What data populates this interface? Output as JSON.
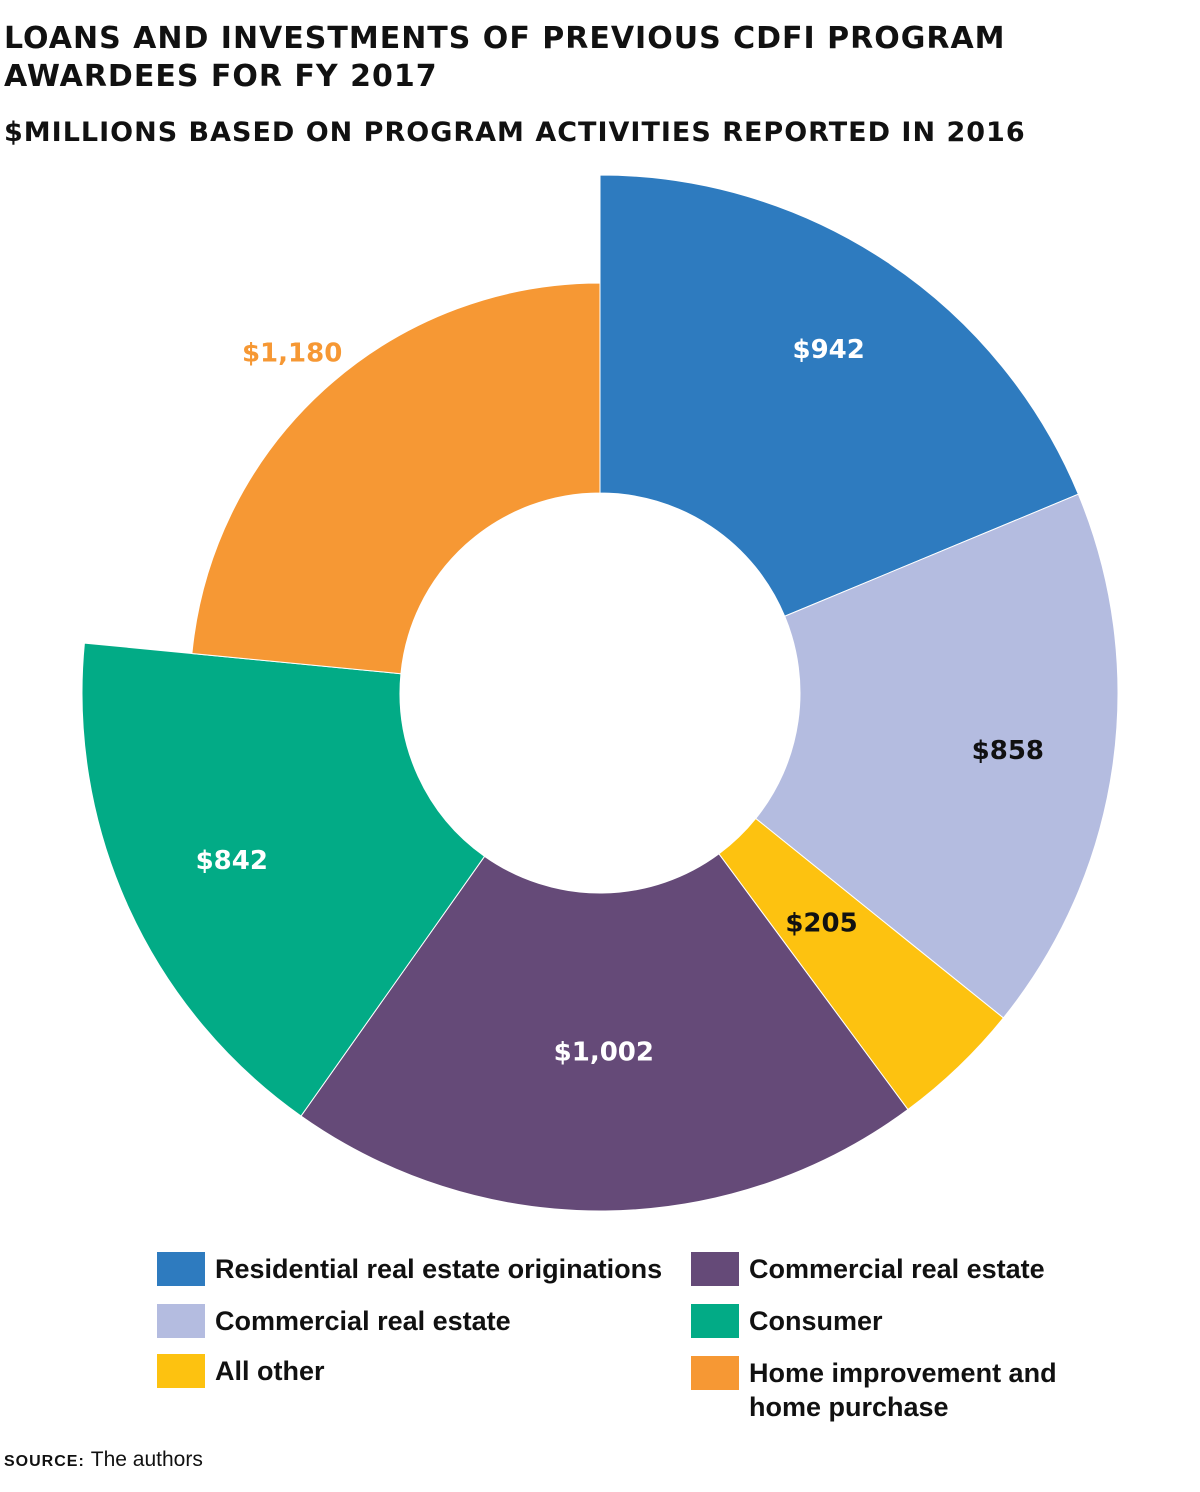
{
  "chart_data": {
    "type": "pie",
    "title": "LOANS AND INVESTMENTS OF PREVIOUS CDFI PROGRAM AWARDEES FOR FY 2017",
    "subtitle": "$MILLIONS BASED ON PROGRAM ACTIVITIES REPORTED IN 2016",
    "donut": true,
    "legend_position": "bottom",
    "slices": [
      {
        "name": "Residential real estate originations",
        "value": 942,
        "label": "$942",
        "color": "#2e7bbf",
        "label_color": "#ffffff",
        "emphasis": "outer"
      },
      {
        "name": "Commercial real estate",
        "value": 858,
        "label": "$858",
        "color": "#b4bce0",
        "label_color": "#111111",
        "emphasis": "normal"
      },
      {
        "name": "All other",
        "value": 205,
        "label": "$205",
        "color": "#fdc210",
        "label_color": "#111111",
        "emphasis": "normal"
      },
      {
        "name": "Commercial real estate",
        "value": 1002,
        "label": "$1,002",
        "color": "#654a78",
        "label_color": "#ffffff",
        "emphasis": "normal"
      },
      {
        "name": "Consumer",
        "value": 842,
        "label": "$842",
        "color": "#02ab86",
        "label_color": "#ffffff",
        "emphasis": "outer"
      },
      {
        "name": "Home improvement and home purchase",
        "value": 1180,
        "label": "$1,180",
        "color": "#f69834",
        "label_color": "#f69834",
        "emphasis": "inner"
      }
    ]
  },
  "legend": {
    "left": [
      {
        "label": "Residential real estate originations",
        "color": "#2e7bbf"
      },
      {
        "label": "Commercial real estate",
        "color": "#b4bce0"
      },
      {
        "label": "All other",
        "color": "#fdc210"
      }
    ],
    "right": [
      {
        "label": "Commercial real estate",
        "color": "#654a78"
      },
      {
        "label": "Consumer",
        "color": "#02ab86"
      },
      {
        "label": "Home improvement and\nhome purchase",
        "color": "#f69834"
      }
    ]
  },
  "source": {
    "label": "SOURCE:",
    "text": "The authors"
  }
}
